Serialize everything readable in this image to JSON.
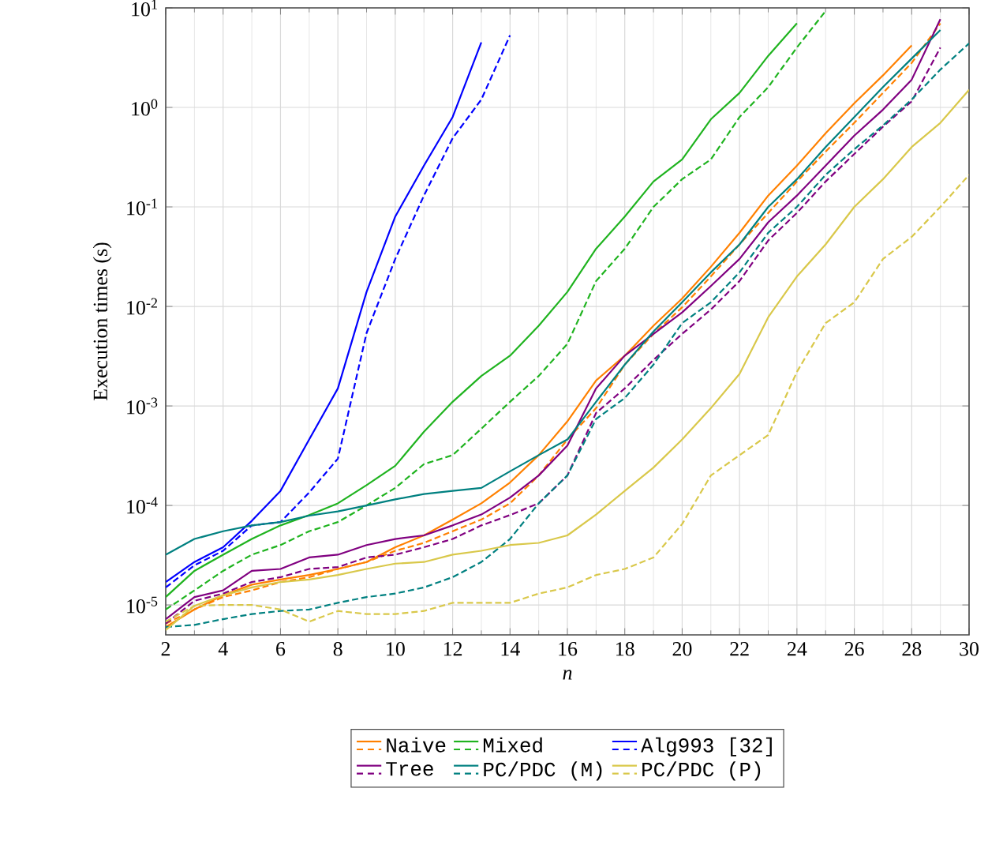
{
  "chart_data": {
    "type": "line",
    "xlabel": "n",
    "ylabel": "Execution times (s)",
    "x": [
      2,
      3,
      4,
      5,
      6,
      7,
      8,
      9,
      10,
      11,
      12,
      13,
      14,
      15,
      16,
      17,
      18,
      19,
      20,
      21,
      22,
      23,
      24,
      25,
      26,
      27,
      28,
      29,
      30
    ],
    "xlim": [
      2,
      30
    ],
    "xticks": [
      2,
      4,
      6,
      8,
      10,
      12,
      14,
      16,
      18,
      20,
      22,
      24,
      26,
      28,
      30
    ],
    "ylim": [
      5e-06,
      10
    ],
    "log": "y",
    "yticks": [
      {
        "value": 1e-05,
        "label": "10$^{-5}$"
      },
      {
        "value": 0.0001,
        "label": "10$^{-4}$"
      },
      {
        "value": 0.001,
        "label": "10$^{-3}$"
      },
      {
        "value": 0.01,
        "label": "10$^{-2}$"
      },
      {
        "value": 0.1,
        "label": "10$^{-1}$"
      },
      {
        "value": 1,
        "label": "10$^{0}$"
      },
      {
        "value": 10,
        "label": "10$^{1}$"
      }
    ],
    "grid": true,
    "legend": "bottom",
    "marker": "none",
    "series": [
      {
        "name": "Naive",
        "color": "#ff8000",
        "line_style": "solid",
        "values": [
          6e-06,
          9e-06,
          1.25e-05,
          1.6e-05,
          1.8e-05,
          2e-05,
          2.3e-05,
          2.7e-05,
          3.8e-05,
          5e-05,
          7.2e-05,
          0.000105,
          0.00017,
          0.00032,
          0.0007,
          0.0018,
          0.0032,
          0.0064,
          0.012,
          0.025,
          0.055,
          0.13,
          0.26,
          0.55,
          1.1,
          2.1,
          4.2,
          null,
          null
        ]
      },
      {
        "color": "#ff8000",
        "line_style": "dashed",
        "values": [
          6.5e-06,
          9e-06,
          1.2e-05,
          1.4e-05,
          1.7e-05,
          1.9e-05,
          2.3e-05,
          2.7e-05,
          3.5e-05,
          4.2e-05,
          5.5e-05,
          7.2e-05,
          0.000105,
          0.0002,
          0.00046,
          0.00095,
          0.0026,
          0.0053,
          0.0098,
          0.02,
          0.042,
          0.087,
          0.18,
          0.36,
          0.7,
          1.4,
          2.8,
          7,
          null
        ]
      },
      {
        "name": "Mixed",
        "color": "#1fb31f",
        "line_style": "solid",
        "values": [
          1.2e-05,
          2.2e-05,
          3.2e-05,
          4.6e-05,
          6.3e-05,
          8e-05,
          0.000105,
          0.00016,
          0.00025,
          0.00055,
          0.0011,
          0.002,
          0.0032,
          0.0064,
          0.014,
          0.038,
          0.08,
          0.18,
          0.3,
          0.76,
          1.4,
          3.3,
          7,
          null,
          null,
          null,
          null,
          null,
          null
        ]
      },
      {
        "color": "#1fb31f",
        "line_style": "dashed",
        "values": [
          9e-06,
          1.4e-05,
          2.2e-05,
          3.2e-05,
          4e-05,
          5.5e-05,
          6.8e-05,
          0.0001,
          0.00015,
          0.00026,
          0.00032,
          0.00059,
          0.0011,
          0.002,
          0.0042,
          0.018,
          0.038,
          0.1,
          0.19,
          0.3,
          0.8,
          1.6,
          4,
          9.3,
          null,
          null,
          null,
          null,
          null
        ]
      },
      {
        "name": "Alg993 [32]",
        "color": "#0000ff",
        "line_style": "solid",
        "values": [
          1.7e-05,
          2.7e-05,
          3.8e-05,
          7e-05,
          0.00014,
          0.00046,
          0.0015,
          0.014,
          0.08,
          0.26,
          0.8,
          4.5,
          null,
          null,
          null,
          null,
          null,
          null,
          null,
          null,
          null,
          null,
          null,
          null,
          null,
          null,
          null,
          null,
          null
        ]
      },
      {
        "color": "#0000ff",
        "line_style": "dashed",
        "values": [
          1.5e-05,
          2.5e-05,
          3.5e-05,
          6.3e-05,
          6.8e-05,
          0.000135,
          0.000295,
          0.0054,
          0.03,
          0.13,
          0.49,
          1.2,
          5.3,
          null,
          null,
          null,
          null,
          null,
          null,
          null,
          null,
          null,
          null,
          null,
          null,
          null,
          null,
          null,
          null
        ]
      },
      {
        "name": "Tree",
        "color": "#800080",
        "line_style": "solid",
        "values": [
          7.2e-06,
          1.2e-05,
          1.4e-05,
          2.2e-05,
          2.3e-05,
          3e-05,
          3.2e-05,
          4e-05,
          4.6e-05,
          5e-05,
          6.3e-05,
          8.1e-05,
          0.00012,
          0.0002,
          0.0004,
          0.0015,
          0.0032,
          0.0053,
          0.0087,
          0.016,
          0.03,
          0.07,
          0.13,
          0.26,
          0.52,
          0.95,
          1.9,
          7.7,
          null
        ]
      },
      {
        "color": "#800080",
        "line_style": "dashed",
        "values": [
          6.5e-06,
          1.1e-05,
          1.3e-05,
          1.7e-05,
          1.9e-05,
          2.3e-05,
          2.4e-05,
          3e-05,
          3.2e-05,
          3.8e-05,
          4.6e-05,
          6.3e-05,
          8e-05,
          0.000105,
          0.0002,
          0.00085,
          0.0015,
          0.0029,
          0.0053,
          0.0093,
          0.018,
          0.046,
          0.087,
          0.18,
          0.34,
          0.64,
          1.15,
          4,
          null
        ]
      },
      {
        "name": "PC/PDC (M)",
        "color": "#008080",
        "line_style": "solid",
        "values": [
          3.2e-05,
          4.6e-05,
          5.5e-05,
          6.3e-05,
          6.8e-05,
          7.9e-05,
          8.7e-05,
          0.0001,
          0.000115,
          0.00013,
          0.00014,
          0.00015,
          0.00022,
          0.00032,
          0.00046,
          0.0011,
          0.0026,
          0.0056,
          0.011,
          0.022,
          0.042,
          0.1,
          0.19,
          0.4,
          0.8,
          1.6,
          3.1,
          6,
          null
        ]
      },
      {
        "color": "#008080",
        "line_style": "dashed",
        "values": [
          6e-06,
          6.3e-06,
          7.2e-06,
          8.1e-06,
          8.7e-06,
          9e-06,
          1.05e-05,
          1.2e-05,
          1.3e-05,
          1.5e-05,
          1.9e-05,
          2.7e-05,
          4.6e-05,
          0.000105,
          0.0002,
          0.00074,
          0.0012,
          0.0026,
          0.0068,
          0.011,
          0.022,
          0.055,
          0.1,
          0.21,
          0.38,
          0.66,
          1.2,
          2.4,
          4.4
        ]
      },
      {
        "name": "PC/PDC (P)",
        "color": "#d9c84a",
        "line_style": "solid",
        "values": [
          5.6e-06,
          9.8e-06,
          1.25e-05,
          1.5e-05,
          1.7e-05,
          1.8e-05,
          2e-05,
          2.3e-05,
          2.6e-05,
          2.7e-05,
          3.2e-05,
          3.5e-05,
          4e-05,
          4.2e-05,
          5e-05,
          8.1e-05,
          0.00014,
          0.00024,
          0.00046,
          0.00095,
          0.0021,
          0.0078,
          0.02,
          0.042,
          0.1,
          0.19,
          0.4,
          0.7,
          1.5
        ]
      },
      {
        "color": "#d9c84a",
        "line_style": "dashed",
        "values": [
          6.8e-06,
          9.8e-06,
          1e-05,
          1e-05,
          9e-06,
          6.8e-06,
          8.7e-06,
          8.1e-06,
          8.1e-06,
          8.7e-06,
          1.05e-05,
          1.05e-05,
          1.05e-05,
          1.3e-05,
          1.5e-05,
          2e-05,
          2.3e-05,
          3e-05,
          6.5e-05,
          0.0002,
          0.00032,
          0.00051,
          0.0022,
          0.0068,
          0.011,
          0.03,
          0.05,
          0.1,
          0.21
        ]
      }
    ]
  }
}
